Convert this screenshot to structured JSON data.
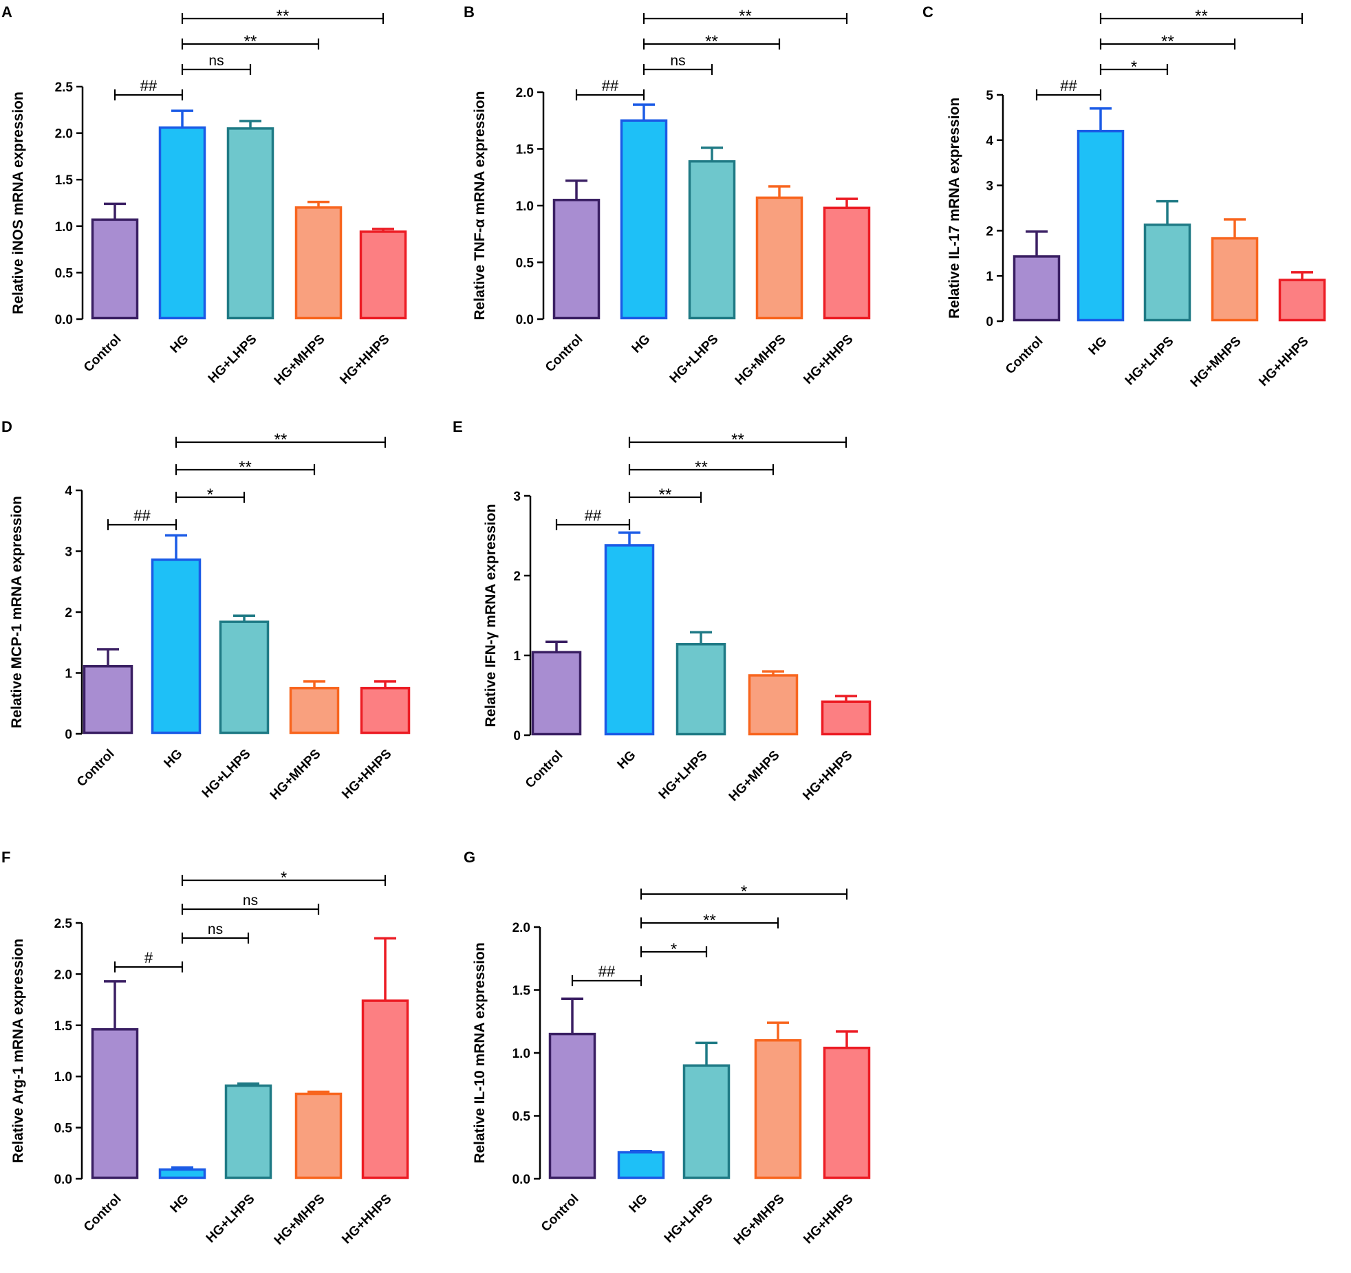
{
  "figure": {
    "categories": [
      "Control",
      "HG",
      "HG+LHPS",
      "HG+MHPS",
      "HG+HHPS"
    ],
    "colors": {
      "fills": [
        "#a88dd1",
        "#1ec0f7",
        "#6ec7cc",
        "#f9a07e",
        "#fc7f82"
      ],
      "strokes": [
        "#3a1f63",
        "#1b5be6",
        "#1f7a85",
        "#f8651e",
        "#ec1c24"
      ]
    }
  },
  "chart_data": [
    {
      "panel": "A",
      "type": "bar",
      "ylabel": "Relative iNOS mRNA expression",
      "categories": [
        "Control",
        "HG",
        "HG+LHPS",
        "HG+MHPS",
        "HG+HHPS"
      ],
      "values": [
        1.07,
        2.06,
        2.05,
        1.2,
        0.94
      ],
      "errors": [
        0.17,
        0.18,
        0.08,
        0.06,
        0.03
      ],
      "ylim": [
        0,
        2.5
      ],
      "yticks": [
        "0.0",
        "0.5",
        "1.0",
        "1.5",
        "2.0",
        "2.5"
      ],
      "annotations": [
        {
          "from": 0,
          "to": 1,
          "label": "##"
        },
        {
          "from": 1,
          "to": 2,
          "label": "ns"
        },
        {
          "from": 1,
          "to": 3,
          "label": "**"
        },
        {
          "from": 1,
          "to": 4,
          "label": "**"
        }
      ]
    },
    {
      "panel": "B",
      "type": "bar",
      "ylabel": "Relative TNF-α mRNA expression",
      "categories": [
        "Control",
        "HG",
        "HG+LHPS",
        "HG+MHPS",
        "HG+HHPS"
      ],
      "values": [
        1.05,
        1.75,
        1.39,
        1.07,
        0.98
      ],
      "errors": [
        0.17,
        0.14,
        0.12,
        0.1,
        0.08
      ],
      "ylim": [
        0,
        2.0
      ],
      "yticks": [
        "0.0",
        "0.5",
        "1.0",
        "1.5",
        "2.0"
      ],
      "annotations": [
        {
          "from": 0,
          "to": 1,
          "label": "##"
        },
        {
          "from": 1,
          "to": 2,
          "label": "ns"
        },
        {
          "from": 1,
          "to": 3,
          "label": "**"
        },
        {
          "from": 1,
          "to": 4,
          "label": "**"
        }
      ]
    },
    {
      "panel": "C",
      "type": "bar",
      "ylabel": "Relative IL-17 mRNA expression",
      "categories": [
        "Control",
        "HG",
        "HG+LHPS",
        "HG+MHPS",
        "HG+HHPS"
      ],
      "values": [
        1.43,
        4.2,
        2.13,
        1.83,
        0.91
      ],
      "errors": [
        0.55,
        0.5,
        0.52,
        0.42,
        0.17
      ],
      "ylim": [
        0,
        5
      ],
      "yticks": [
        "0",
        "1",
        "2",
        "3",
        "4",
        "5"
      ],
      "annotations": [
        {
          "from": 0,
          "to": 1,
          "label": "##"
        },
        {
          "from": 1,
          "to": 2,
          "label": "*"
        },
        {
          "from": 1,
          "to": 3,
          "label": "**"
        },
        {
          "from": 1,
          "to": 4,
          "label": "**"
        }
      ]
    },
    {
      "panel": "D",
      "type": "bar",
      "ylabel": "Relative MCP-1 mRNA expression",
      "categories": [
        "Control",
        "HG",
        "HG+LHPS",
        "HG+MHPS",
        "HG+HHPS"
      ],
      "values": [
        1.11,
        2.86,
        1.84,
        0.75,
        0.75
      ],
      "errors": [
        0.28,
        0.4,
        0.1,
        0.11,
        0.11
      ],
      "ylim": [
        0,
        4
      ],
      "yticks": [
        "0",
        "1",
        "2",
        "3",
        "4"
      ],
      "annotations": [
        {
          "from": 0,
          "to": 1,
          "label": "##"
        },
        {
          "from": 1,
          "to": 2,
          "label": "*"
        },
        {
          "from": 1,
          "to": 3,
          "label": "**"
        },
        {
          "from": 1,
          "to": 4,
          "label": "**"
        }
      ]
    },
    {
      "panel": "E",
      "type": "bar",
      "ylabel": "Relative IFN-γ mRNA expression",
      "categories": [
        "Control",
        "HG",
        "HG+LHPS",
        "HG+MHPS",
        "HG+HHPS"
      ],
      "values": [
        1.04,
        2.38,
        1.14,
        0.75,
        0.42
      ],
      "errors": [
        0.13,
        0.16,
        0.15,
        0.05,
        0.07
      ],
      "ylim": [
        0,
        3
      ],
      "yticks": [
        "0",
        "1",
        "2",
        "3"
      ],
      "annotations": [
        {
          "from": 0,
          "to": 1,
          "label": "##"
        },
        {
          "from": 1,
          "to": 2,
          "label": "**"
        },
        {
          "from": 1,
          "to": 3,
          "label": "**"
        },
        {
          "from": 1,
          "to": 4,
          "label": "**"
        }
      ]
    },
    {
      "panel": "F",
      "type": "bar",
      "ylabel": "Relative Arg-1 mRNA expression",
      "categories": [
        "Control",
        "HG",
        "HG+LHPS",
        "HG+MHPS",
        "HG+HHPS"
      ],
      "values": [
        1.46,
        0.09,
        0.91,
        0.83,
        1.74
      ],
      "errors": [
        0.47,
        0.02,
        0.02,
        0.02,
        0.61
      ],
      "ylim": [
        0,
        2.5
      ],
      "yticks": [
        "0.0",
        "0.5",
        "1.0",
        "1.5",
        "2.0",
        "2.5"
      ],
      "annotations": [
        {
          "from": 0,
          "to": 1,
          "label": "#"
        },
        {
          "from": 1,
          "to": 2,
          "label": "ns"
        },
        {
          "from": 1,
          "to": 3,
          "label": "ns"
        },
        {
          "from": 1,
          "to": 4,
          "label": "*"
        }
      ]
    },
    {
      "panel": "G",
      "type": "bar",
      "ylabel": "Relative IL-10 mRNA expression",
      "categories": [
        "Control",
        "HG",
        "HG+LHPS",
        "HG+MHPS",
        "HG+HHPS"
      ],
      "values": [
        1.15,
        0.21,
        0.9,
        1.1,
        1.04
      ],
      "errors": [
        0.28,
        0.01,
        0.18,
        0.14,
        0.13
      ],
      "ylim": [
        0,
        2.0
      ],
      "yticks": [
        "0.0",
        "0.5",
        "1.0",
        "1.5",
        "2.0"
      ],
      "annotations": [
        {
          "from": 0,
          "to": 1,
          "label": "##"
        },
        {
          "from": 1,
          "to": 2,
          "label": "*"
        },
        {
          "from": 1,
          "to": 3,
          "label": "**"
        },
        {
          "from": 1,
          "to": 4,
          "label": "*"
        }
      ]
    }
  ]
}
